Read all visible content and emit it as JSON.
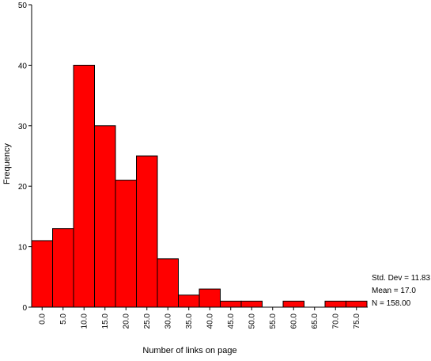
{
  "chart_data": {
    "type": "bar",
    "title": "",
    "xlabel": "Number of links on page",
    "ylabel": "Frequency",
    "ylim": [
      0,
      50
    ],
    "yticks": [
      "0",
      "10",
      "20",
      "30",
      "40",
      "50"
    ],
    "xticks": [
      "0.0",
      "5.0",
      "10.0",
      "15.0",
      "20.0",
      "25.0",
      "30.0",
      "35.0",
      "40.0",
      "45.0",
      "50.0",
      "55.0",
      "60.0",
      "65.0",
      "70.0",
      "75.0"
    ],
    "bins": [
      0,
      5,
      10,
      15,
      20,
      25,
      30,
      35,
      40,
      45,
      50,
      55,
      60,
      65,
      70,
      75
    ],
    "values": [
      11,
      13,
      40,
      30,
      21,
      25,
      8,
      2,
      3,
      1,
      1,
      0,
      1,
      0,
      1,
      1
    ],
    "bar_color": "#ff0000",
    "grid": false,
    "stats": {
      "std_dev": "Std. Dev = 11.83",
      "mean": "Mean = 17.0",
      "n": "N = 158.00"
    }
  }
}
